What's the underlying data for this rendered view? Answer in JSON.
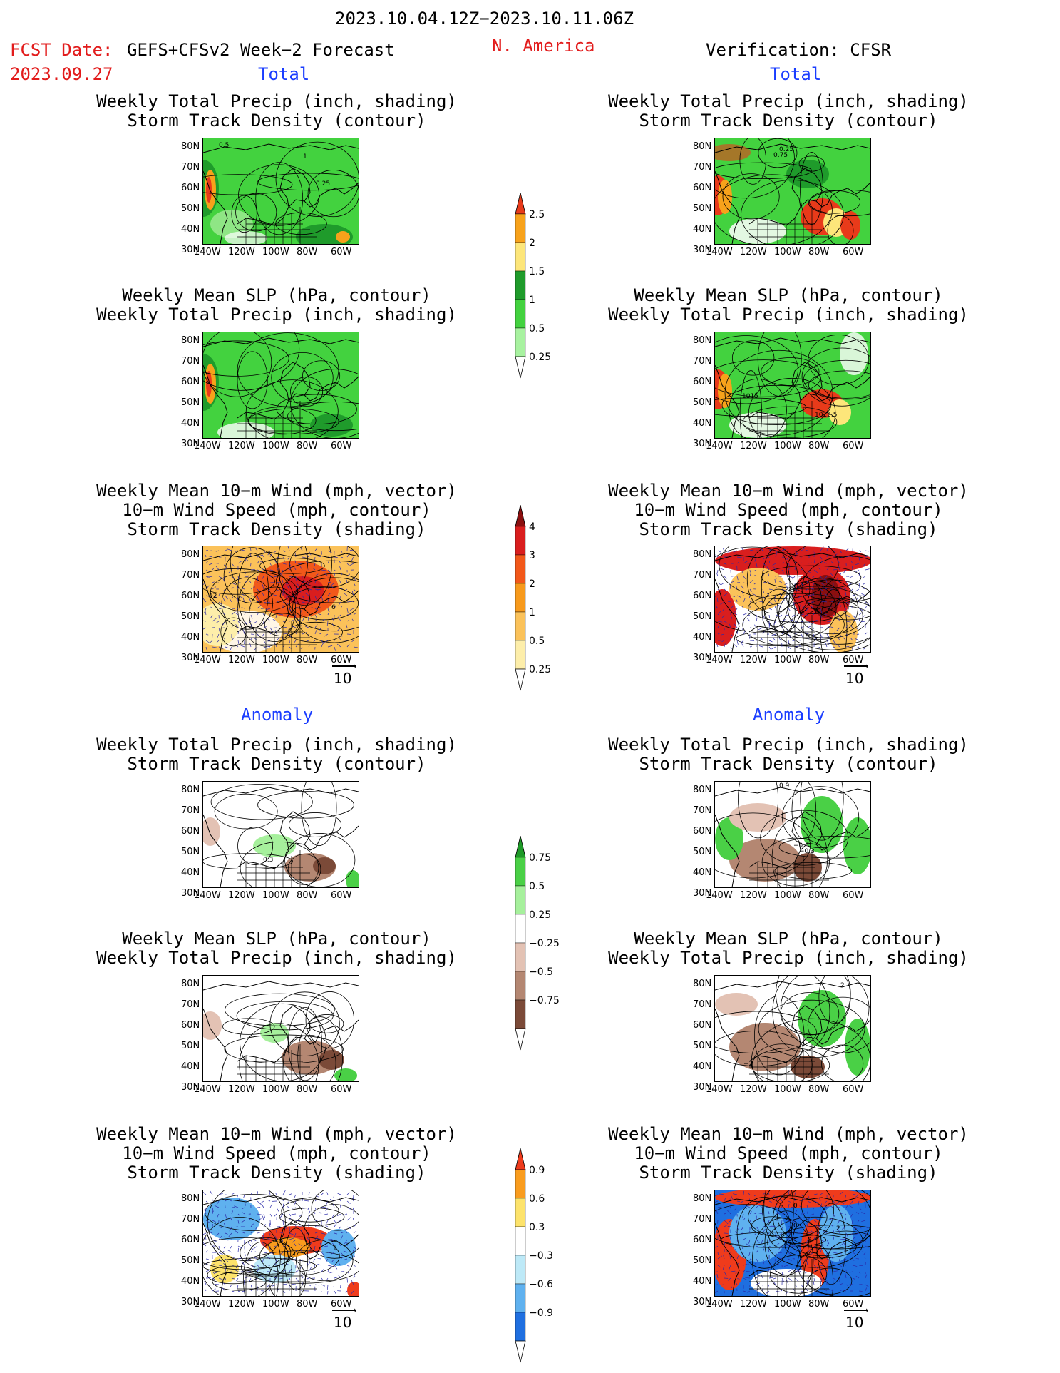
{
  "header": {
    "date_range": "2023.10.04.12Z−2023.10.11.06Z",
    "fcst_label": "FCST Date:",
    "model_label": "GEFS+CFSv2 Week−2 Forecast",
    "region": "N. America",
    "fcst_date": "2023.09.27",
    "verification": "Verification: CFSR"
  },
  "sections": {
    "total": "Total",
    "anomaly": "Anomaly"
  },
  "titles": {
    "precip_storm": [
      "Weekly Total Precip (inch, shading)",
      "Storm Track Density (contour)"
    ],
    "slp_precip": [
      "Weekly Mean SLP (hPa, contour)",
      "Weekly Total Precip (inch, shading)"
    ],
    "wind_storm": [
      "Weekly Mean 10−m Wind (mph, vector)",
      "10−m Wind Speed (mph, contour)",
      "Storm Track Density (shading)"
    ]
  },
  "axes": {
    "lat_labels": [
      "80N",
      "70N",
      "60N",
      "50N",
      "40N",
      "30N"
    ],
    "lon_labels": [
      "140W",
      "120W",
      "100W",
      "80W",
      "60W"
    ]
  },
  "vector_ref": "10",
  "colorbars": {
    "precip_total": {
      "labels": [
        "2.5",
        "2",
        "1.5",
        "1",
        "0.5",
        "0.25"
      ],
      "colors": [
        "#e83a1a",
        "#f7a21b",
        "#fde67a",
        "#1f9b2b",
        "#43d23f",
        "#a8f2a0"
      ]
    },
    "storm_total": {
      "labels": [
        "4",
        "3",
        "2",
        "1",
        "0.5",
        "0.25"
      ],
      "colors": [
        "#8b0f0f",
        "#d91e1e",
        "#f2581a",
        "#f79a1c",
        "#fbc25a",
        "#fdeeaa"
      ]
    },
    "precip_anom": {
      "labels": [
        "0.75",
        "0.5",
        "0.25",
        "−0.25",
        "−0.5",
        "−0.75"
      ],
      "colors": [
        "#1e9a28",
        "#4ad046",
        "#a6f09c",
        "#ffffff",
        "#e3c2b4",
        "#b48772",
        "#7b4a38"
      ]
    },
    "storm_anom": {
      "labels": [
        "0.9",
        "0.6",
        "0.3",
        "−0.3",
        "−0.6",
        "−0.9"
      ],
      "colors": [
        "#ef3b1c",
        "#f99c1e",
        "#fde36b",
        "#ffffff",
        "#bde9f7",
        "#5fb1ef",
        "#1f6fe0"
      ]
    }
  },
  "contour_labels": {
    "fc_total_precip": [
      "0.5",
      "1",
      "0.25"
    ],
    "ob_total_precip": [
      "0.25",
      "0.75"
    ],
    "ob_total_slp": [
      "1015",
      "1012.5"
    ],
    "fc_total_wind": [
      "12",
      "6"
    ],
    "ob_total_wind": [
      "6"
    ],
    "fc_anom_precip": [
      "0.3"
    ],
    "ob_anom_precip": [
      "0.9",
      "−0.6",
      "−0.3"
    ],
    "ob_anom_slp": [
      "2",
      "−2"
    ],
    "fc_anom_wind": [
      "1"
    ],
    "ob_anom_wind": [
      "0",
      "0",
      "2",
      "2"
    ]
  }
}
